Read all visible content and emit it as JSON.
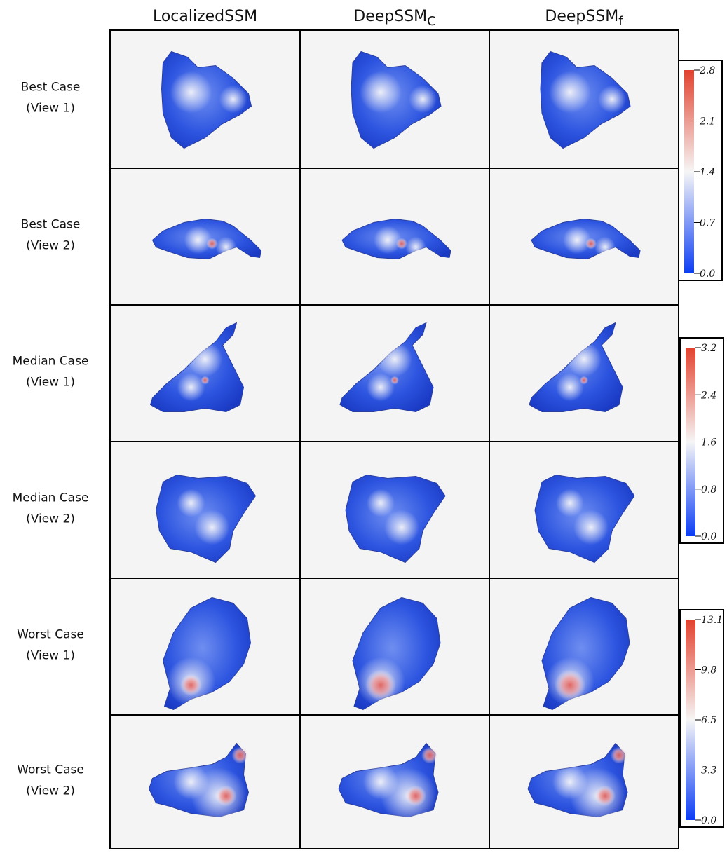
{
  "column_headers": [
    {
      "text": "LocalizedSSM"
    },
    {
      "text": "DeepSSM",
      "subscript": "C"
    },
    {
      "text": "DeepSSM",
      "subscript": "f"
    }
  ],
  "row_labels": [
    [
      "Best Case",
      "(View 1)"
    ],
    [
      "Best Case",
      "(View 2)"
    ],
    [
      "Median Case",
      "(View 1)"
    ],
    [
      "Median Case",
      "(View 2)"
    ],
    [
      "Worst Case",
      "(View 1)"
    ],
    [
      "Worst Case",
      "(View 2)"
    ]
  ],
  "colorbars": [
    {
      "ticks": [
        "2.8",
        "2.1",
        "1.4",
        "0.7",
        "0.0"
      ]
    },
    {
      "ticks": [
        "3.2",
        "2.4",
        "1.6",
        "0.8",
        "0.0"
      ]
    },
    {
      "ticks": [
        "13.1",
        "9.8",
        "6.5",
        "3.3",
        "0.0"
      ]
    }
  ]
}
